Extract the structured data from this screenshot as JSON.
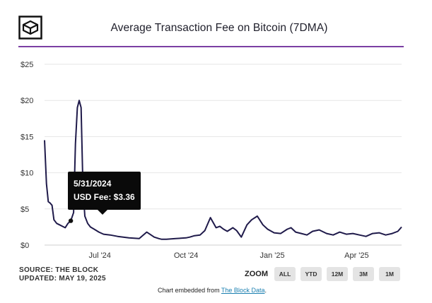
{
  "header": {
    "title": "Average Transaction Fee on Bitcoin (7DMA)",
    "logo_icon": "the-block-cube-logo-icon"
  },
  "tooltip": {
    "date": "5/31/2024",
    "text": "USD Fee: $3.36"
  },
  "source": {
    "line1": "SOURCE: THE BLOCK",
    "line2": "UPDATED: MAY 19, 2025"
  },
  "zoom": {
    "label": "ZOOM",
    "buttons": [
      "ALL",
      "YTD",
      "12M",
      "3M",
      "1M"
    ]
  },
  "footer": {
    "text": "Chart embedded from",
    "link": "The Block Data",
    "period": "."
  },
  "colors": {
    "line": "#1f1a4a",
    "accent_rule": "#7b3fa3",
    "grid": "#e6e6e6"
  },
  "chart_data": {
    "type": "line",
    "title": "Average Transaction Fee on Bitcoin (7DMA)",
    "ylabel": "",
    "xlabel": "",
    "y_ticks": [
      "$0",
      "$5",
      "$10",
      "$15",
      "$20",
      "$25"
    ],
    "ylim": [
      0,
      25
    ],
    "x_ticks": [
      "Jul '24",
      "Oct '24",
      "Jan '25",
      "Apr '25"
    ],
    "x_tick_dates": [
      "2024-07-01",
      "2024-10-01",
      "2025-01-01",
      "2025-04-01"
    ],
    "xlim": [
      "2024-05-03",
      "2025-05-19"
    ],
    "grid": true,
    "legend": "none",
    "highlight": {
      "date": "2024-05-31",
      "value": 3.36
    },
    "series": [
      {
        "x": [
          "2024-05-03",
          "2024-05-05",
          "2024-05-07",
          "2024-05-09",
          "2024-05-11",
          "2024-05-13",
          "2024-05-16",
          "2024-05-19",
          "2024-05-22",
          "2024-05-25",
          "2024-05-28",
          "2024-05-31",
          "2024-06-03",
          "2024-06-05",
          "2024-06-07",
          "2024-06-09",
          "2024-06-11",
          "2024-06-13",
          "2024-06-15",
          "2024-06-18",
          "2024-06-21",
          "2024-06-25",
          "2024-06-30",
          "2024-07-05",
          "2024-07-12",
          "2024-07-20",
          "2024-08-01",
          "2024-08-12",
          "2024-08-20",
          "2024-08-28",
          "2024-09-02",
          "2024-09-05",
          "2024-09-10",
          "2024-09-20",
          "2024-10-01",
          "2024-10-05",
          "2024-10-10",
          "2024-10-16",
          "2024-10-21",
          "2024-10-27",
          "2024-11-02",
          "2024-11-06",
          "2024-11-10",
          "2024-11-14",
          "2024-11-20",
          "2024-11-24",
          "2024-11-29",
          "2024-12-05",
          "2024-12-10",
          "2024-12-16",
          "2024-12-22",
          "2024-12-27",
          "2025-01-03",
          "2025-01-10",
          "2025-01-17",
          "2025-01-21",
          "2025-01-26",
          "2025-02-01",
          "2025-02-07",
          "2025-02-13",
          "2025-02-20",
          "2025-02-28",
          "2025-03-07",
          "2025-03-14",
          "2025-03-21",
          "2025-03-28",
          "2025-04-04",
          "2025-04-11",
          "2025-04-18",
          "2025-04-25",
          "2025-05-02",
          "2025-05-09",
          "2025-05-15",
          "2025-05-19"
        ],
        "values": [
          14.5,
          8.5,
          6,
          5.8,
          5.5,
          3.5,
          3,
          2.8,
          2.6,
          2.4,
          3.0,
          3.36,
          4.5,
          14,
          19,
          20,
          19,
          8,
          4,
          3,
          2.5,
          2.2,
          1.8,
          1.5,
          1.4,
          1.2,
          1.0,
          0.9,
          1.8,
          1.1,
          0.9,
          0.8,
          0.8,
          0.9,
          1.0,
          1.1,
          1.3,
          1.4,
          2.0,
          3.8,
          2.4,
          2.6,
          2.2,
          1.9,
          2.4,
          2.0,
          1.1,
          2.8,
          3.5,
          4.0,
          2.8,
          2.2,
          1.7,
          1.6,
          2.2,
          2.4,
          1.8,
          1.6,
          1.4,
          1.9,
          2.1,
          1.6,
          1.4,
          1.8,
          1.5,
          1.6,
          1.4,
          1.2,
          1.6,
          1.7,
          1.4,
          1.6,
          1.9,
          2.5
        ]
      }
    ]
  }
}
